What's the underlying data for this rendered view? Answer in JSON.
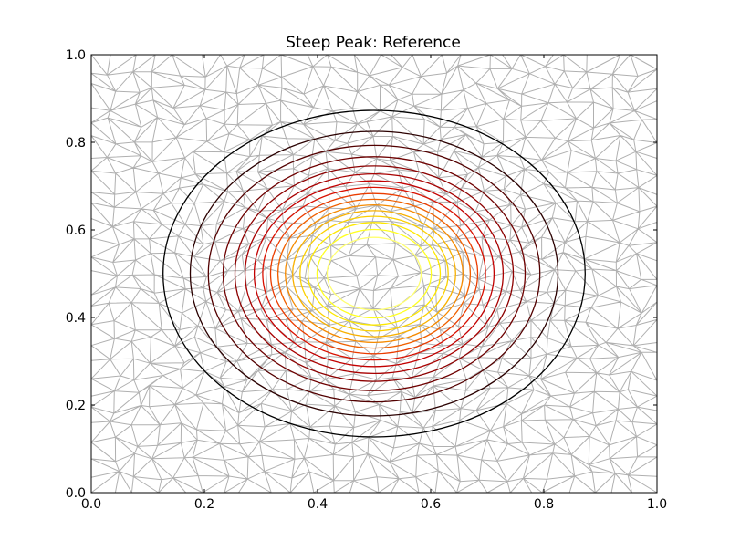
{
  "chart_data": {
    "type": "contour",
    "title": "Steep Peak: Reference",
    "xlabel": "",
    "ylabel": "",
    "xlim": [
      0.0,
      1.0
    ],
    "ylim": [
      0.0,
      1.0
    ],
    "x_ticks": [
      "0.0",
      "0.2",
      "0.4",
      "0.6",
      "0.8",
      "1.0"
    ],
    "y_ticks": [
      "0.0",
      "0.2",
      "0.4",
      "0.6",
      "0.8",
      "1.0"
    ],
    "grid": false,
    "legend": "none",
    "mesh": {
      "type": "triangulation",
      "color": "#b0b0b0",
      "coverage": "full domain [0,1]x[0,1]"
    },
    "center": [
      0.5,
      0.5
    ],
    "contour_levels": [
      {
        "rx": 0.373,
        "ry": 0.373,
        "color": "#000000"
      },
      {
        "rx": 0.325,
        "ry": 0.325,
        "color": "#2a0000"
      },
      {
        "rx": 0.293,
        "ry": 0.293,
        "color": "#520000"
      },
      {
        "rx": 0.267,
        "ry": 0.267,
        "color": "#6e0000"
      },
      {
        "rx": 0.246,
        "ry": 0.246,
        "color": "#8c0000"
      },
      {
        "rx": 0.228,
        "ry": 0.228,
        "color": "#a80000"
      },
      {
        "rx": 0.212,
        "ry": 0.212,
        "color": "#c20000"
      },
      {
        "rx": 0.197,
        "ry": 0.197,
        "color": "#d81000"
      },
      {
        "rx": 0.183,
        "ry": 0.183,
        "color": "#ea3c00"
      },
      {
        "rx": 0.17,
        "ry": 0.17,
        "color": "#f06000"
      },
      {
        "rx": 0.157,
        "ry": 0.157,
        "color": "#f58a00"
      },
      {
        "rx": 0.144,
        "ry": 0.144,
        "color": "#f8b000"
      },
      {
        "rx": 0.131,
        "ry": 0.131,
        "color": "#fbd000"
      },
      {
        "rx": 0.117,
        "ry": 0.117,
        "color": "#fde800"
      },
      {
        "rx": 0.101,
        "ry": 0.101,
        "color": "#ffff20"
      },
      {
        "rx": 0.083,
        "ry": 0.083,
        "color": "#ffff70"
      }
    ]
  }
}
